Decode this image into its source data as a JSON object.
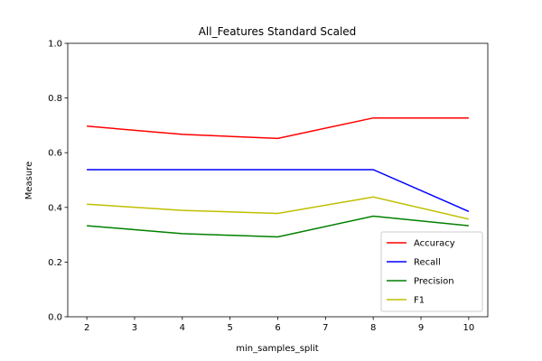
{
  "chart_data": {
    "type": "line",
    "title": "All_Features Standard Scaled",
    "xlabel": "min_samples_split",
    "ylabel": "Measure",
    "x": [
      2,
      4,
      6,
      8,
      10
    ],
    "xlim": [
      1.6,
      10.4
    ],
    "ylim": [
      0.0,
      1.0
    ],
    "xticks": [
      2,
      3,
      4,
      5,
      6,
      7,
      8,
      9,
      10
    ],
    "yticks": [
      0.0,
      0.2,
      0.4,
      0.6,
      0.8,
      1.0
    ],
    "xtick_labels": [
      "2",
      "3",
      "4",
      "5",
      "6",
      "7",
      "8",
      "9",
      "10"
    ],
    "ytick_labels": [
      "0.0",
      "0.2",
      "0.4",
      "0.6",
      "0.8",
      "1.0"
    ],
    "grid": false,
    "legend_position": "lower-right",
    "series": [
      {
        "name": "Accuracy",
        "color": "#ff0000",
        "values": [
          0.697,
          0.667,
          0.652,
          0.727,
          0.727
        ]
      },
      {
        "name": "Recall",
        "color": "#0000ff",
        "values": [
          0.538,
          0.538,
          0.538,
          0.538,
          0.385
        ]
      },
      {
        "name": "Precision",
        "color": "#008000",
        "values": [
          0.333,
          0.304,
          0.292,
          0.368,
          0.333
        ]
      },
      {
        "name": "F1",
        "color": "#bfbf00",
        "values": [
          0.412,
          0.389,
          0.378,
          0.438,
          0.357
        ]
      }
    ]
  }
}
